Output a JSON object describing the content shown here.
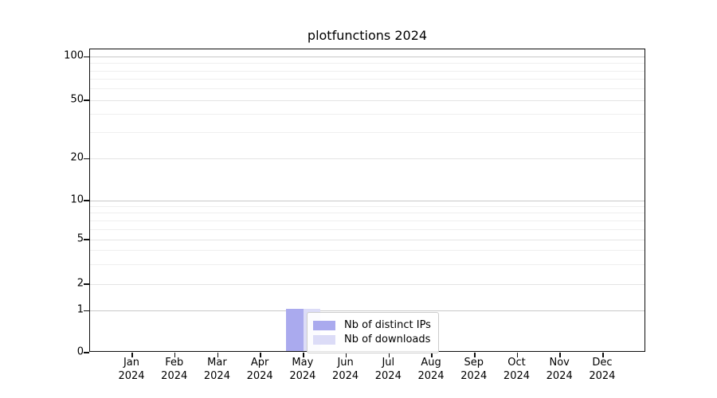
{
  "chart_data": {
    "type": "bar",
    "title": "plotfunctions 2024",
    "xlabel": "",
    "ylabel": "",
    "categories": [
      "Jan",
      "Feb",
      "Mar",
      "Apr",
      "May",
      "Jun",
      "Jul",
      "Aug",
      "Sep",
      "Oct",
      "Nov",
      "Dec"
    ],
    "x_year_label": "2024",
    "series": [
      {
        "name": "Nb of distinct IPs",
        "color": "#aaaaee",
        "values": [
          0,
          0,
          0,
          0,
          1,
          0,
          0,
          0,
          0,
          0,
          0,
          0
        ]
      },
      {
        "name": "Nb of downloads",
        "color": "#dcdcf7",
        "values": [
          0,
          0,
          0,
          0,
          1,
          0,
          0,
          0,
          0,
          0,
          0,
          0
        ]
      }
    ],
    "y_axis": {
      "scale": "quasi-log with linear 0-1 segment",
      "major_ticks": [
        0,
        1,
        2,
        5,
        10,
        20,
        50,
        100
      ],
      "minor_ticks": [
        3,
        4,
        6,
        7,
        8,
        9,
        30,
        40,
        60,
        70,
        80,
        90
      ],
      "emphasized_gridlines": [
        1,
        10,
        100
      ],
      "scale_anchors": [
        [
          0,
          0
        ],
        [
          1,
          0.1383
        ],
        [
          2,
          0.2257
        ],
        [
          5,
          0.3727
        ],
        [
          10,
          0.5013
        ],
        [
          20,
          0.6397
        ],
        [
          50,
          0.832
        ],
        [
          100,
          0.9751
        ]
      ],
      "ylim_bottom": 0
    },
    "grid": "horizontal major+minor",
    "legend_position": "lower center, inside axes"
  },
  "colors": {
    "bar_distinct_ips": "#aaaaee",
    "bar_downloads": "#dcdcf7",
    "grid_decade": "#c8c8c8",
    "grid_major": "#e4e4e4",
    "grid_minor": "#efefef",
    "axis": "#0d0d0d",
    "text": "#000000",
    "legend_border": "#cccccc",
    "background": "#ffffff"
  }
}
